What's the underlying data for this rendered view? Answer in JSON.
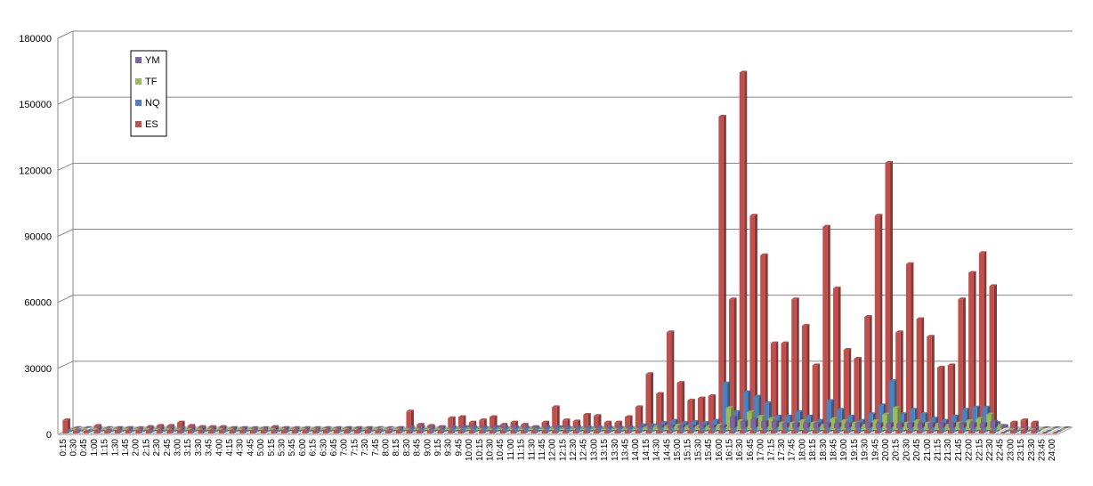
{
  "chart_data": {
    "type": "bar3d",
    "categories": [
      "0:15",
      "0:30",
      "0:45",
      "1:00",
      "1:15",
      "1:30",
      "1:45",
      "2:00",
      "2:15",
      "2:30",
      "2:45",
      "3:00",
      "3:15",
      "3:30",
      "3:45",
      "4:00",
      "4:15",
      "4:30",
      "4:45",
      "5:00",
      "5:15",
      "5:30",
      "5:45",
      "6:00",
      "6:15",
      "6:30",
      "6:45",
      "7:00",
      "7:15",
      "7:30",
      "7:45",
      "8:00",
      "8:15",
      "8:30",
      "8:45",
      "9:00",
      "9:15",
      "9:30",
      "9:45",
      "10:00",
      "10:15",
      "10:30",
      "10:45",
      "11:00",
      "11:15",
      "11:30",
      "11:45",
      "12:00",
      "12:15",
      "12:30",
      "12:45",
      "13:00",
      "13:15",
      "13:30",
      "13:45",
      "14:00",
      "14:15",
      "14:30",
      "14:45",
      "15:00",
      "15:15",
      "15:30",
      "15:45",
      "16:00",
      "16:15",
      "16:30",
      "16:45",
      "17:00",
      "17:15",
      "17:30",
      "17:45",
      "18:00",
      "18:15",
      "18:30",
      "18:45",
      "19:00",
      "19:15",
      "19:30",
      "19:45",
      "20:00",
      "20:15",
      "20:30",
      "20:45",
      "21:00",
      "21:15",
      "21:30",
      "21:45",
      "22:00",
      "22:15",
      "22:30",
      "22:45",
      "23:00",
      "23:15",
      "23:30",
      "23:45",
      "24:00"
    ],
    "series": [
      {
        "name": "YM",
        "color": "#8064a2",
        "values": [
          100,
          100,
          100,
          100,
          100,
          100,
          100,
          100,
          100,
          100,
          100,
          100,
          100,
          100,
          100,
          100,
          100,
          100,
          100,
          100,
          100,
          100,
          100,
          100,
          100,
          100,
          100,
          100,
          100,
          100,
          100,
          100,
          400,
          400,
          400,
          400,
          400,
          400,
          400,
          400,
          400,
          400,
          400,
          400,
          400,
          400,
          400,
          400,
          400,
          400,
          400,
          400,
          400,
          400,
          400,
          400,
          1000,
          1000,
          1000,
          1000,
          1000,
          1000,
          1000,
          5000,
          3000,
          4000,
          3000,
          3000,
          2000,
          2000,
          2000,
          2000,
          2000,
          2000,
          2000,
          2000,
          2000,
          2000,
          2000,
          2000,
          2000,
          2000,
          2000,
          2000,
          2000,
          2000,
          2000,
          2000,
          3000,
          1000,
          0,
          0,
          0,
          0,
          0,
          0
        ]
      },
      {
        "name": "TF",
        "color": "#9bbb59",
        "values": [
          200,
          200,
          200,
          200,
          200,
          200,
          200,
          200,
          200,
          200,
          200,
          200,
          200,
          200,
          200,
          200,
          200,
          200,
          200,
          200,
          200,
          200,
          200,
          200,
          200,
          200,
          200,
          200,
          200,
          200,
          200,
          200,
          200,
          500,
          400,
          400,
          500,
          500,
          500,
          500,
          500,
          500,
          500,
          500,
          500,
          500,
          500,
          500,
          500,
          500,
          500,
          500,
          500,
          500,
          500,
          1000,
          1500,
          1500,
          2000,
          1500,
          1500,
          1500,
          2000,
          10000,
          4000,
          8000,
          6000,
          5000,
          3000,
          3000,
          4000,
          3000,
          2000,
          5000,
          4000,
          3000,
          2000,
          4000,
          7000,
          10000,
          3000,
          4000,
          3000,
          2500,
          2000,
          3000,
          4000,
          5000,
          7000,
          2000,
          0,
          100,
          100,
          100,
          0,
          0
        ]
      },
      {
        "name": "NQ",
        "color": "#4f81bd",
        "values": [
          500,
          500,
          500,
          500,
          500,
          500,
          500,
          500,
          500,
          500,
          500,
          500,
          500,
          500,
          500,
          500,
          500,
          500,
          500,
          500,
          500,
          500,
          500,
          500,
          500,
          500,
          500,
          500,
          500,
          500,
          500,
          500,
          500,
          1000,
          800,
          800,
          800,
          1500,
          2000,
          1500,
          1500,
          2000,
          1500,
          1500,
          1500,
          1200,
          1500,
          2000,
          1500,
          1500,
          1500,
          1500,
          1500,
          1500,
          1500,
          3000,
          3000,
          4000,
          5000,
          4000,
          4500,
          4000,
          5000,
          22000,
          9000,
          18000,
          16000,
          13000,
          7000,
          7000,
          9000,
          7000,
          5000,
          14000,
          10000,
          7000,
          5000,
          8000,
          12000,
          23000,
          8000,
          10000,
          8000,
          6000,
          5000,
          7000,
          10000,
          11000,
          11000,
          4000,
          0,
          200,
          200,
          200,
          0,
          0
        ]
      },
      {
        "name": "ES",
        "color": "#c0504d",
        "values": [
          6000,
          1500,
          1000,
          3500,
          1500,
          2500,
          2500,
          2000,
          3000,
          3500,
          3500,
          5000,
          3500,
          3000,
          3000,
          3000,
          2500,
          2500,
          2000,
          2000,
          3000,
          2500,
          2000,
          2000,
          2000,
          2000,
          2000,
          2500,
          2500,
          2500,
          1500,
          1500,
          2500,
          10000,
          4000,
          3500,
          3000,
          7000,
          7500,
          5000,
          6000,
          7500,
          4000,
          5000,
          4000,
          3000,
          5000,
          12000,
          6000,
          5500,
          8500,
          8000,
          5000,
          5000,
          7500,
          12000,
          27000,
          18000,
          46000,
          23000,
          15000,
          16000,
          17000,
          144000,
          61000,
          164000,
          99000,
          81000,
          41000,
          41000,
          61000,
          49000,
          31000,
          94000,
          66000,
          38000,
          34000,
          53000,
          99000,
          123000,
          46000,
          77000,
          52000,
          44000,
          30000,
          31000,
          61000,
          73000,
          82000,
          67000,
          0,
          5000,
          6000,
          5000,
          0,
          0
        ]
      }
    ],
    "ylim": [
      0,
      180000
    ],
    "yticks": [
      0,
      30000,
      60000,
      90000,
      120000,
      150000,
      180000
    ],
    "grid": true
  }
}
